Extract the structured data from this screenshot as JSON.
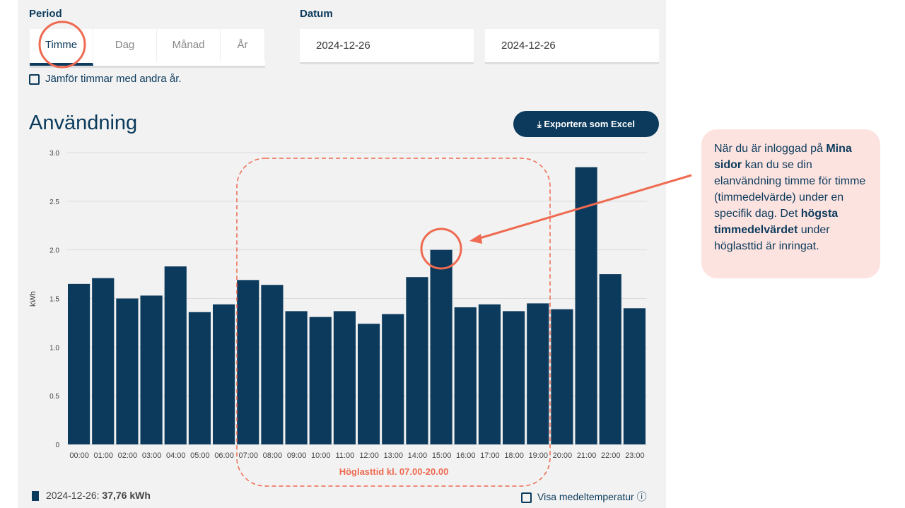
{
  "period": {
    "label": "Period",
    "tabs": [
      "Timme",
      "Dag",
      "Månad",
      "År"
    ]
  },
  "datum": {
    "label": "Datum",
    "from": "2024-12-26",
    "to": "2024-12-26"
  },
  "compare_label": "Jämför timmar med andra år.",
  "section_title": "Användning",
  "export_label": "Exportera som Excel",
  "peak_label": "Höglasttid kl. 07.00-20.00",
  "legend": {
    "date": "2024-12-26:",
    "total": "37,76 kWh"
  },
  "temp_label": "Visa medeltemperatur",
  "callout": {
    "pre": "När du är inloggad på ",
    "b1": "Mina sidor",
    "mid": " kan du se din elanvändning timme för timme (timmedelvärde) under en specifik dag. Det ",
    "b2": "högsta timmedelvärdet",
    "post": " under höglasttid är inringat."
  },
  "colors": {
    "bar": "#0b3a5c",
    "accent": "#ee6a50"
  },
  "chart_data": {
    "type": "bar",
    "ylabel": "kWh",
    "ylim": [
      0,
      3
    ],
    "yticks": [
      "0",
      "0.5",
      "1.0",
      "1.5",
      "2.0",
      "2.5",
      "3.0"
    ],
    "categories": [
      "00:00",
      "01:00",
      "02:00",
      "03:00",
      "04:00",
      "05:00",
      "06:00",
      "07:00",
      "08:00",
      "09:00",
      "10:00",
      "11:00",
      "12:00",
      "13:00",
      "14:00",
      "15:00",
      "16:00",
      "17:00",
      "18:00",
      "19:00",
      "20:00",
      "21:00",
      "22:00",
      "23:00"
    ],
    "values": [
      1.65,
      1.71,
      1.5,
      1.53,
      1.83,
      1.36,
      1.44,
      1.69,
      1.64,
      1.37,
      1.31,
      1.37,
      1.24,
      1.34,
      1.72,
      2.0,
      1.41,
      1.44,
      1.37,
      1.45,
      1.39,
      2.85,
      1.75,
      1.4
    ]
  }
}
